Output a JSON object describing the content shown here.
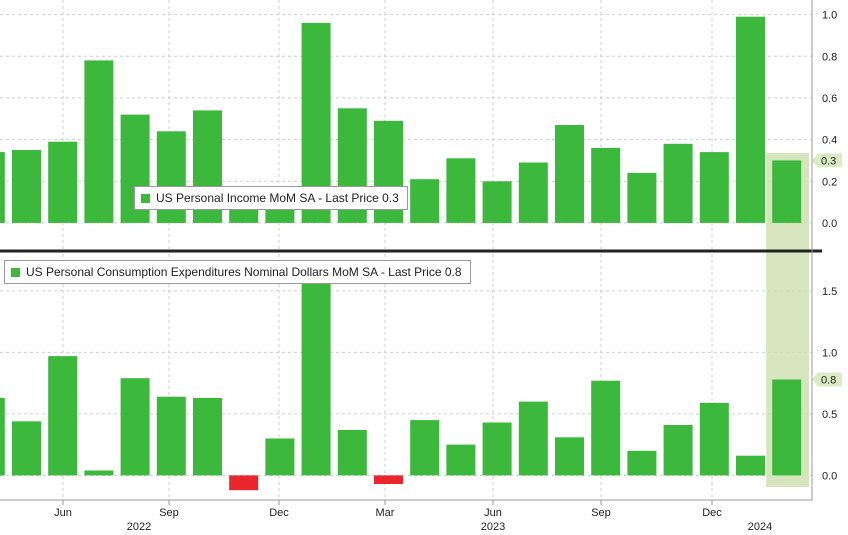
{
  "colors": {
    "positive": "#3cb93c",
    "negative": "#e8262b",
    "highlight": "#cfe0b3",
    "grid": "#cfcfcf",
    "divider": "#222222",
    "tag_bg": "#d9ecc3"
  },
  "chart_data": [
    {
      "type": "bar",
      "panel": "top",
      "legend": "US Personal Income MoM SA - Last Price 0.3",
      "last_price_tag": "0.3",
      "ylim": [
        -0.13,
        1.07
      ],
      "yticks": [
        0.0,
        0.2,
        0.4,
        0.6,
        0.8,
        1.0
      ],
      "ytick_labels": [
        "0.0",
        "0.2",
        "0.4",
        "0.6",
        "0.8",
        "1.0"
      ],
      "series": [
        {
          "values": [
            0.34,
            0.35,
            0.39,
            0.78,
            0.52,
            0.44,
            0.54,
            0.1,
            0.1,
            0.96,
            0.55,
            0.49,
            0.21,
            0.31,
            0.2,
            0.29,
            0.47,
            0.36,
            0.24,
            0.38,
            0.34,
            0.99,
            0.3
          ]
        }
      ]
    },
    {
      "type": "bar",
      "panel": "bottom",
      "legend": "US Personal Consumption Expenditures Nominal Dollars MoM SA - Last Price 0.8",
      "last_price_tag": "0.8",
      "ylim": [
        -0.2,
        1.8
      ],
      "yticks": [
        0.0,
        0.5,
        1.0,
        1.5
      ],
      "ytick_labels": [
        "0.0",
        "0.5",
        "1.0",
        "1.5"
      ],
      "series": [
        {
          "values": [
            0.63,
            0.44,
            0.97,
            0.04,
            0.79,
            0.64,
            0.63,
            -0.12,
            0.3,
            1.65,
            0.37,
            -0.07,
            0.45,
            0.25,
            0.43,
            0.6,
            0.31,
            0.77,
            0.2,
            0.41,
            0.59,
            0.16,
            0.78
          ]
        }
      ]
    }
  ],
  "x_axis": {
    "month_labels": [
      "Jun",
      "Sep",
      "Dec",
      "Mar",
      "Jun",
      "Sep",
      "Dec"
    ],
    "year_labels": [
      "2022",
      "2023",
      "2024"
    ]
  }
}
